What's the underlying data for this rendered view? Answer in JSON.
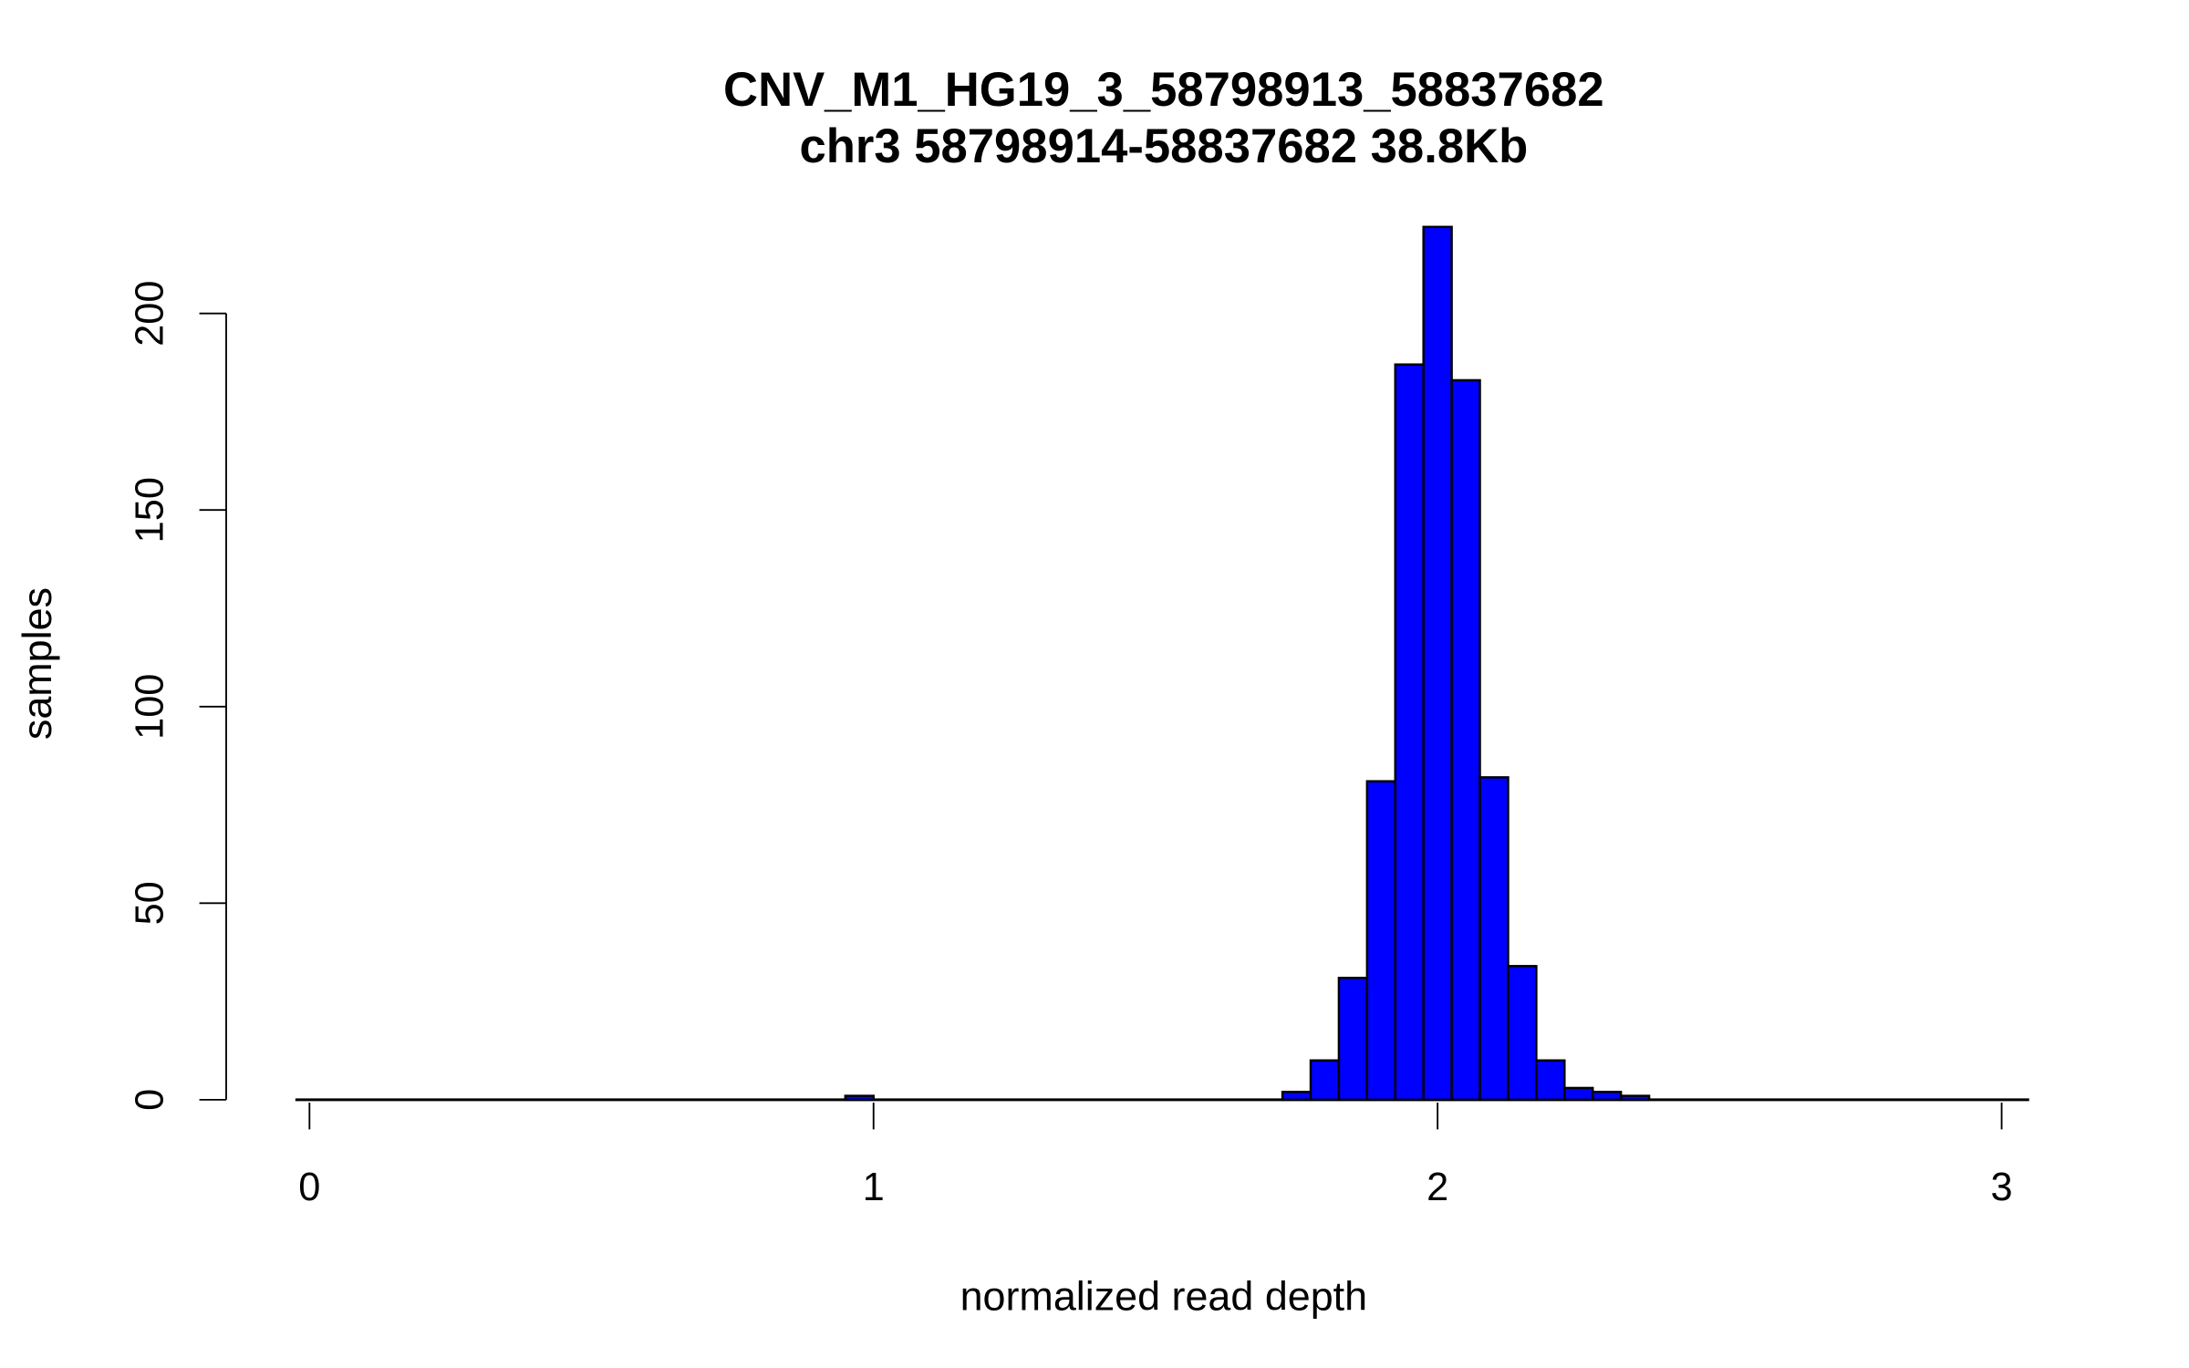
{
  "chart_data": {
    "type": "bar",
    "title": "CNV_M1_HG19_3_58798913_58837682",
    "subtitle": "chr3 58798914-58837682 38.8Kb",
    "xlabel": "normalized read depth",
    "ylabel": "samples",
    "xlim": [
      0,
      3.05
    ],
    "ylim": [
      0,
      222
    ],
    "x_ticks": [
      "0",
      "1",
      "2",
      "3"
    ],
    "y_ticks": [
      "0",
      "50",
      "100",
      "150",
      "200"
    ],
    "bin_width": 0.05,
    "bar_color": "#0000FF",
    "bars": [
      {
        "start": 0.95,
        "count": 1
      },
      {
        "start": 1.725,
        "count": 2
      },
      {
        "start": 1.775,
        "count": 10
      },
      {
        "start": 1.825,
        "count": 31
      },
      {
        "start": 1.875,
        "count": 81
      },
      {
        "start": 1.925,
        "count": 187
      },
      {
        "start": 1.975,
        "count": 222
      },
      {
        "start": 2.025,
        "count": 183
      },
      {
        "start": 2.075,
        "count": 82
      },
      {
        "start": 2.125,
        "count": 34
      },
      {
        "start": 2.175,
        "count": 10
      },
      {
        "start": 2.225,
        "count": 3
      },
      {
        "start": 2.275,
        "count": 2
      },
      {
        "start": 2.325,
        "count": 1
      }
    ]
  }
}
